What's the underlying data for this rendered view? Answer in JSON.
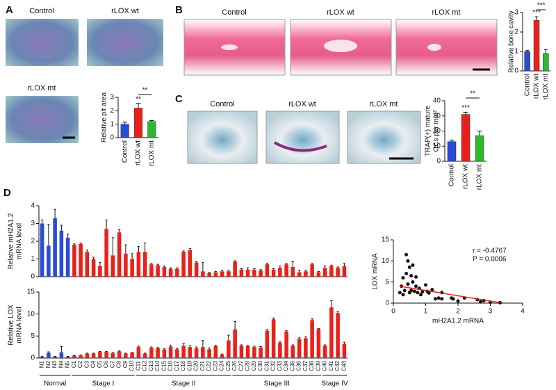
{
  "panels": [
    {
      "label": "A",
      "titles": [
        "Control",
        "rLOX wt",
        "rLOX mt"
      ]
    },
    {
      "label": "B",
      "titles": [
        "Control",
        "rLOX wt",
        "rLOX mt"
      ]
    },
    {
      "label": "C",
      "titles": [
        "Control",
        "rLOX wt",
        "rLOX mt"
      ]
    },
    {
      "label": "D"
    }
  ],
  "stages": [
    {
      "label": "Normal",
      "from": "N1",
      "to": "N5",
      "color": "#2a4bd7"
    },
    {
      "label": "Stage I",
      "from": "C1",
      "to": "C10",
      "color": "#e8221b"
    },
    {
      "label": "Stage II",
      "from": "C11",
      "to": "C25",
      "color": "#e8221b"
    },
    {
      "label": "Stage III",
      "from": "C26",
      "to": "C39",
      "color": "#e8221b"
    },
    {
      "label": "Stage IV",
      "from": "C40",
      "to": "C43",
      "color": "#e8221b"
    }
  ],
  "chart_data": [
    {
      "type": "bar",
      "ylabel": [
        "Relative pit area"
      ],
      "categories": [
        "Control",
        "rLOX wt",
        "rLOX mt"
      ],
      "values": [
        1.0,
        2.2,
        1.2
      ],
      "errors": [
        0.15,
        0.35,
        0.07
      ],
      "colors": [
        "#2a4bd7",
        "#e8221b",
        "#2db82d"
      ],
      "bar_annotations": [
        null,
        "**",
        null
      ],
      "significance": [
        {
          "label": "**",
          "from": "rLOX wt",
          "to": "rLOX mt"
        }
      ],
      "ylim": [
        0,
        3
      ],
      "yticks": [
        0,
        1,
        2,
        3
      ]
    },
    {
      "type": "bar",
      "ylabel": [
        "Relative bone cavity"
      ],
      "categories": [
        "Control",
        "rLOX wt",
        "rLOX mt"
      ],
      "values": [
        1.0,
        2.6,
        0.9
      ],
      "errors": [
        0.05,
        0.18,
        0.2
      ],
      "colors": [
        "#2a4bd7",
        "#e8221b",
        "#2db82d"
      ],
      "bar_annotations": [
        null,
        "***",
        null
      ],
      "significance": [
        {
          "label": "***",
          "from": "rLOX wt",
          "to": "rLOX mt"
        }
      ],
      "ylim": [
        0,
        3
      ],
      "yticks": [
        0,
        1,
        2,
        3
      ]
    },
    {
      "type": "bar",
      "ylabel": [
        "TRAP(+) mature",
        "OCs per mm²"
      ],
      "categories": [
        "Control",
        "rLOX wt",
        "rLOX mt"
      ],
      "values": [
        13,
        31,
        17
      ],
      "errors": [
        1,
        1.5,
        3
      ],
      "colors": [
        "#2a4bd7",
        "#e8221b",
        "#2db82d"
      ],
      "bar_annotations": [
        null,
        "***",
        null
      ],
      "significance": [
        {
          "label": "**",
          "from": "rLOX wt",
          "to": "rLOX mt"
        }
      ],
      "ylim": [
        0,
        40
      ],
      "yticks": [
        0,
        10,
        20,
        30,
        40
      ]
    },
    {
      "type": "bar",
      "ylabel": [
        "Relative mH2A1.2",
        "mRNA level"
      ],
      "values": [
        3.0,
        1.75,
        3.3,
        2.6,
        2.2,
        1.8,
        1.85,
        1.4,
        1.0,
        0.6,
        2.7,
        1.2,
        2.5,
        1.3,
        1.0,
        1.4,
        1.4,
        0.7,
        0.65,
        0.55,
        0.45,
        0.45,
        1.4,
        1.5,
        0.8,
        0.3,
        0.2,
        0.25,
        0.3,
        0.3,
        0.85,
        0.4,
        0.4,
        0.4,
        0.35,
        0.7,
        0.4,
        0.5,
        0.7,
        0.55,
        0.25,
        0.3,
        0.7,
        0.25,
        0.5,
        0.6,
        0.5,
        0.6
      ],
      "errors": [
        0.2,
        1.2,
        0.5,
        0.3,
        0.2,
        0.05,
        0.05,
        0.1,
        0.1,
        0.2,
        0.5,
        1.0,
        0.15,
        0.5,
        0.3,
        0.3,
        0.5,
        0.05,
        0.05,
        0.05,
        0.05,
        0.05,
        0.05,
        0.1,
        0.05,
        0.5,
        0.05,
        0.05,
        0.05,
        0.05,
        0.05,
        0.05,
        0.1,
        0.05,
        0.05,
        0.05,
        0.05,
        0.1,
        0.05,
        0.3,
        0.1,
        0.05,
        0.05,
        0.05,
        0.1,
        0.05,
        0.05,
        0.15
      ],
      "ylim": [
        0,
        4
      ],
      "yticks": [
        0,
        1,
        2,
        3,
        4
      ]
    },
    {
      "type": "bar",
      "ylabel": [
        "Relative LOX",
        "mRNA level"
      ],
      "categories": [
        "N1",
        "N2",
        "N3",
        "N4",
        "N5",
        "C1",
        "C2",
        "C3",
        "C4",
        "C5",
        "C6",
        "C7",
        "C8",
        "C9",
        "C10",
        "C11",
        "C12",
        "C13",
        "C14",
        "C15",
        "C16",
        "C17",
        "C18",
        "C19",
        "C20",
        "C21",
        "C22",
        "C23",
        "C24",
        "C25",
        "C26",
        "C27",
        "C28",
        "C29",
        "C30",
        "C31",
        "C32",
        "C33",
        "C34",
        "C35",
        "C36",
        "C37",
        "C38",
        "C39",
        "C40",
        "C41",
        "C42",
        "C43"
      ],
      "values": [
        0.3,
        1.2,
        0.3,
        1.3,
        0.3,
        0.5,
        0.6,
        1.0,
        1.0,
        1.4,
        1.4,
        1.1,
        1.5,
        1.0,
        1.2,
        2.5,
        1.0,
        2.3,
        2.2,
        1.9,
        2.6,
        2.0,
        2.8,
        2.5,
        2.2,
        2.5,
        2.0,
        2.7,
        0.8,
        4.0,
        6.5,
        2.8,
        2.7,
        2.5,
        2.4,
        6.2,
        8.8,
        3.5,
        6.0,
        2.8,
        4.3,
        4.5,
        8.6,
        6.6,
        2.8,
        11.5,
        10.2,
        3.2
      ],
      "errors": [
        0.1,
        0.2,
        0.1,
        1.3,
        0.1,
        0.05,
        0.1,
        0.1,
        0.1,
        0.1,
        0.1,
        0.1,
        0.1,
        0.1,
        0.1,
        0.2,
        0.1,
        0.2,
        0.2,
        0.2,
        0.3,
        0.2,
        0.5,
        0.3,
        0.3,
        1.5,
        0.3,
        0.2,
        0.1,
        1.2,
        1.8,
        0.2,
        0.2,
        0.2,
        0.2,
        0.3,
        0.3,
        0.2,
        0.2,
        0.2,
        0.3,
        0.3,
        0.3,
        0.1,
        0.2,
        1.5,
        0.3,
        0.4
      ],
      "ylim": [
        0,
        15
      ],
      "yticks": [
        0,
        5,
        10,
        15
      ]
    },
    {
      "type": "scatter",
      "xlabel": "mH2A1.2 mRNA",
      "ylabel": [
        "LOX mRNA"
      ],
      "x": [
        0.2,
        0.25,
        0.3,
        0.3,
        0.35,
        0.4,
        0.4,
        0.45,
        0.45,
        0.5,
        0.5,
        0.55,
        0.55,
        0.6,
        0.6,
        0.65,
        0.7,
        0.7,
        0.75,
        0.8,
        0.85,
        0.9,
        1.0,
        1.05,
        1.1,
        1.2,
        1.3,
        1.4,
        1.5,
        1.5,
        1.8,
        1.85,
        2.0,
        2.2,
        2.6,
        2.7,
        2.8,
        3.0,
        3.3
      ],
      "y": [
        2.5,
        4.0,
        6.0,
        2.0,
        3.0,
        11.5,
        7.0,
        10.0,
        4.5,
        8.5,
        2.5,
        6.5,
        3.0,
        9.0,
        5.0,
        2.8,
        4.0,
        6.2,
        2.5,
        3.5,
        2.0,
        2.7,
        4.3,
        2.8,
        2.4,
        3.2,
        1.0,
        1.2,
        1.0,
        2.5,
        1.2,
        1.0,
        0.5,
        1.2,
        0.8,
        0.3,
        0.6,
        0.2,
        0.1
      ],
      "color": "#111111",
      "fit": {
        "x": [
          0.2,
          3.3
        ],
        "y": [
          4.0,
          0.1
        ],
        "color": "#e8221b"
      },
      "annotations": [
        "r = -0.4767",
        "P = 0.0006"
      ],
      "xlim": [
        0,
        4
      ],
      "xticks": [
        0,
        1,
        2,
        3,
        4
      ],
      "ylim": [
        0,
        15
      ],
      "yticks": [
        0,
        5,
        10,
        15
      ]
    }
  ]
}
